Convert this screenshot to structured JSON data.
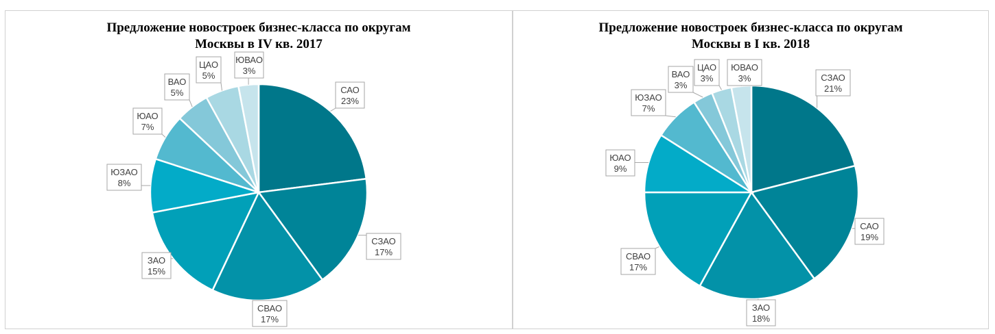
{
  "chart_data": [
    {
      "type": "pie",
      "title_lines": [
        "Предложение новостроек бизнес-класса по округам",
        "Москвы в IV кв. 2017"
      ],
      "slices": [
        {
          "label": "САО",
          "value": 23,
          "text": "23%",
          "color": "#00778a"
        },
        {
          "label": "СЗАО",
          "value": 17,
          "text": "17%",
          "color": "#008498"
        },
        {
          "label": "СВАО",
          "value": 17,
          "text": "17%",
          "color": "#0392a8"
        },
        {
          "label": "ЗАО",
          "value": 15,
          "text": "15%",
          "color": "#01a0b8"
        },
        {
          "label": "ЮЗАО",
          "value": 8,
          "text": "8%",
          "color": "#03abc8"
        },
        {
          "label": "ЮАО",
          "value": 7,
          "text": "7%",
          "color": "#53b9cf"
        },
        {
          "label": "ВАО",
          "value": 5,
          "text": "5%",
          "color": "#84c8d9"
        },
        {
          "label": "ЦАО",
          "value": 5,
          "text": "5%",
          "color": "#a9d8e3"
        },
        {
          "label": "ЮВАО",
          "value": 3,
          "text": "3%",
          "color": "#c6e4ec"
        }
      ]
    },
    {
      "type": "pie",
      "title_lines": [
        "Предложение новостроек бизнес-класса по округам",
        "Москвы в I кв. 2018"
      ],
      "slices": [
        {
          "label": "СЗАО",
          "value": 21,
          "text": "21%",
          "color": "#00778a"
        },
        {
          "label": "САО",
          "value": 19,
          "text": "19%",
          "color": "#008498"
        },
        {
          "label": "ЗАО",
          "value": 18,
          "text": "18%",
          "color": "#0392a8"
        },
        {
          "label": "СВАО",
          "value": 17,
          "text": "17%",
          "color": "#01a0b8"
        },
        {
          "label": "ЮАО",
          "value": 9,
          "text": "9%",
          "color": "#03abc8"
        },
        {
          "label": "ЮЗАО",
          "value": 7,
          "text": "7%",
          "color": "#53b9cf"
        },
        {
          "label": "ВАО",
          "value": 3,
          "text": "3%",
          "color": "#84c8d9"
        },
        {
          "label": "ЦАО",
          "value": 3,
          "text": "3%",
          "color": "#a9d8e3"
        },
        {
          "label": "ЮВАО",
          "value": 3,
          "text": "3%",
          "color": "#c6e4ec"
        }
      ]
    }
  ]
}
